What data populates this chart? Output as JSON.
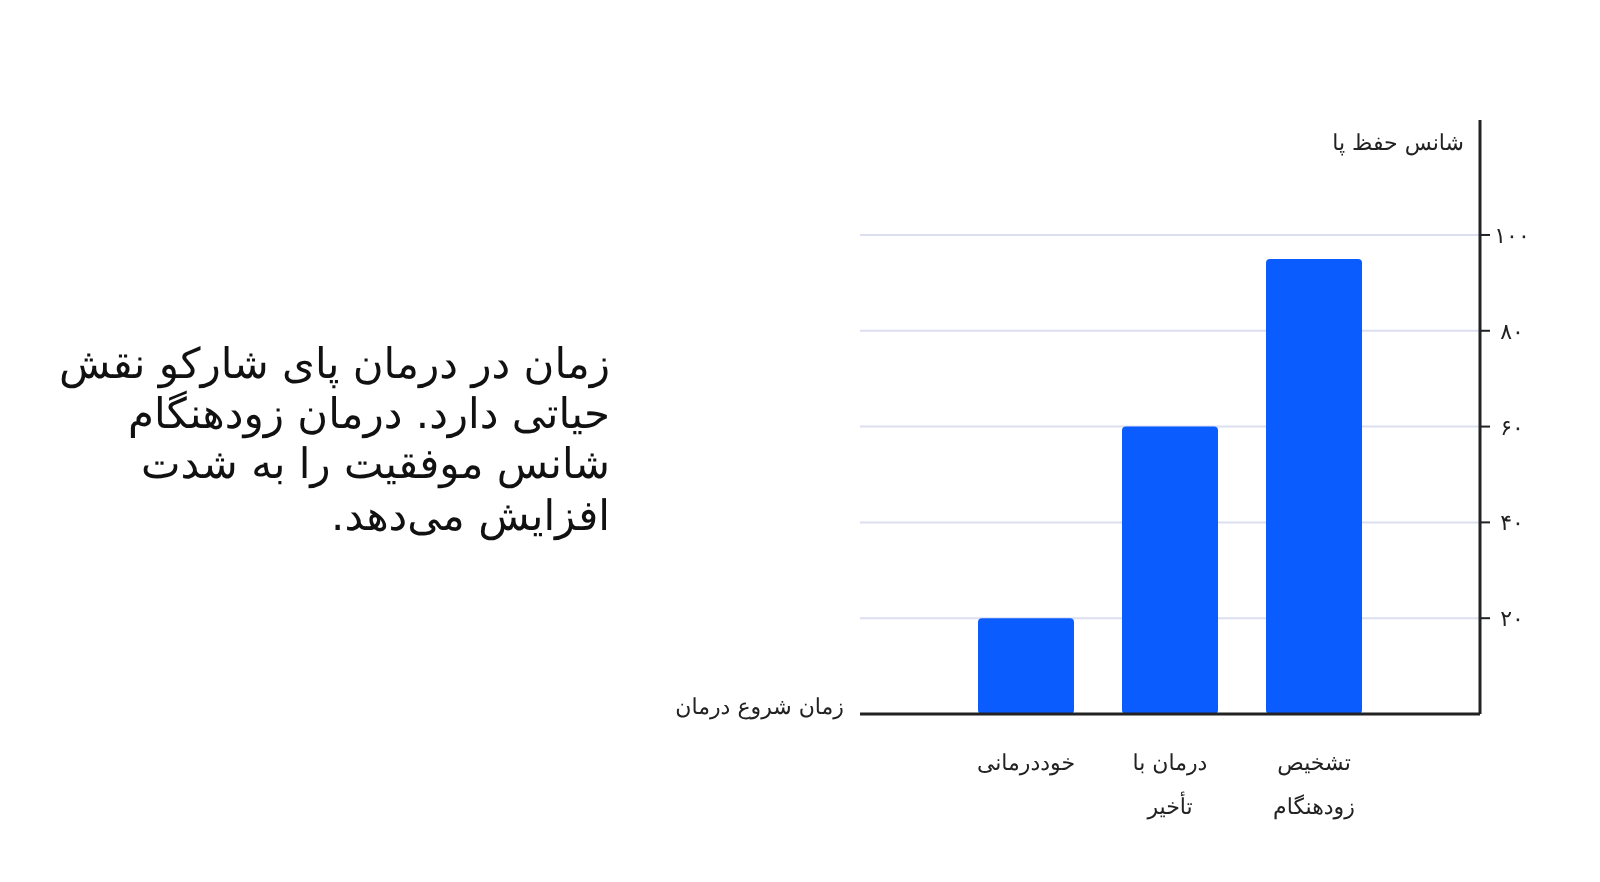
{
  "chart_data": {
    "type": "bar",
    "categories": [
      "خوددرمانی",
      "درمان با تأخیر",
      "تشخیص زودهنگام"
    ],
    "values": [
      20,
      60,
      95
    ],
    "color": "#0a5cff",
    "xlabel": "زمان شروع درمان",
    "ylabel": "شانس حفظ پا",
    "ylim": [
      0,
      124
    ],
    "yticks": [
      {
        "value": 20,
        "label": "۲۰"
      },
      {
        "value": 40,
        "label": "۴۰"
      },
      {
        "value": 60,
        "label": "۶۰"
      },
      {
        "value": 80,
        "label": "۸۰"
      },
      {
        "value": 100,
        "label": "۱۰۰"
      }
    ],
    "grid": "y",
    "annotations": [
      "زمان در درمان پای شارکو نقش حیاتی دارد. درمان زودهنگام شانس موفقیت را به شدت افزایش می‌دهد."
    ]
  }
}
